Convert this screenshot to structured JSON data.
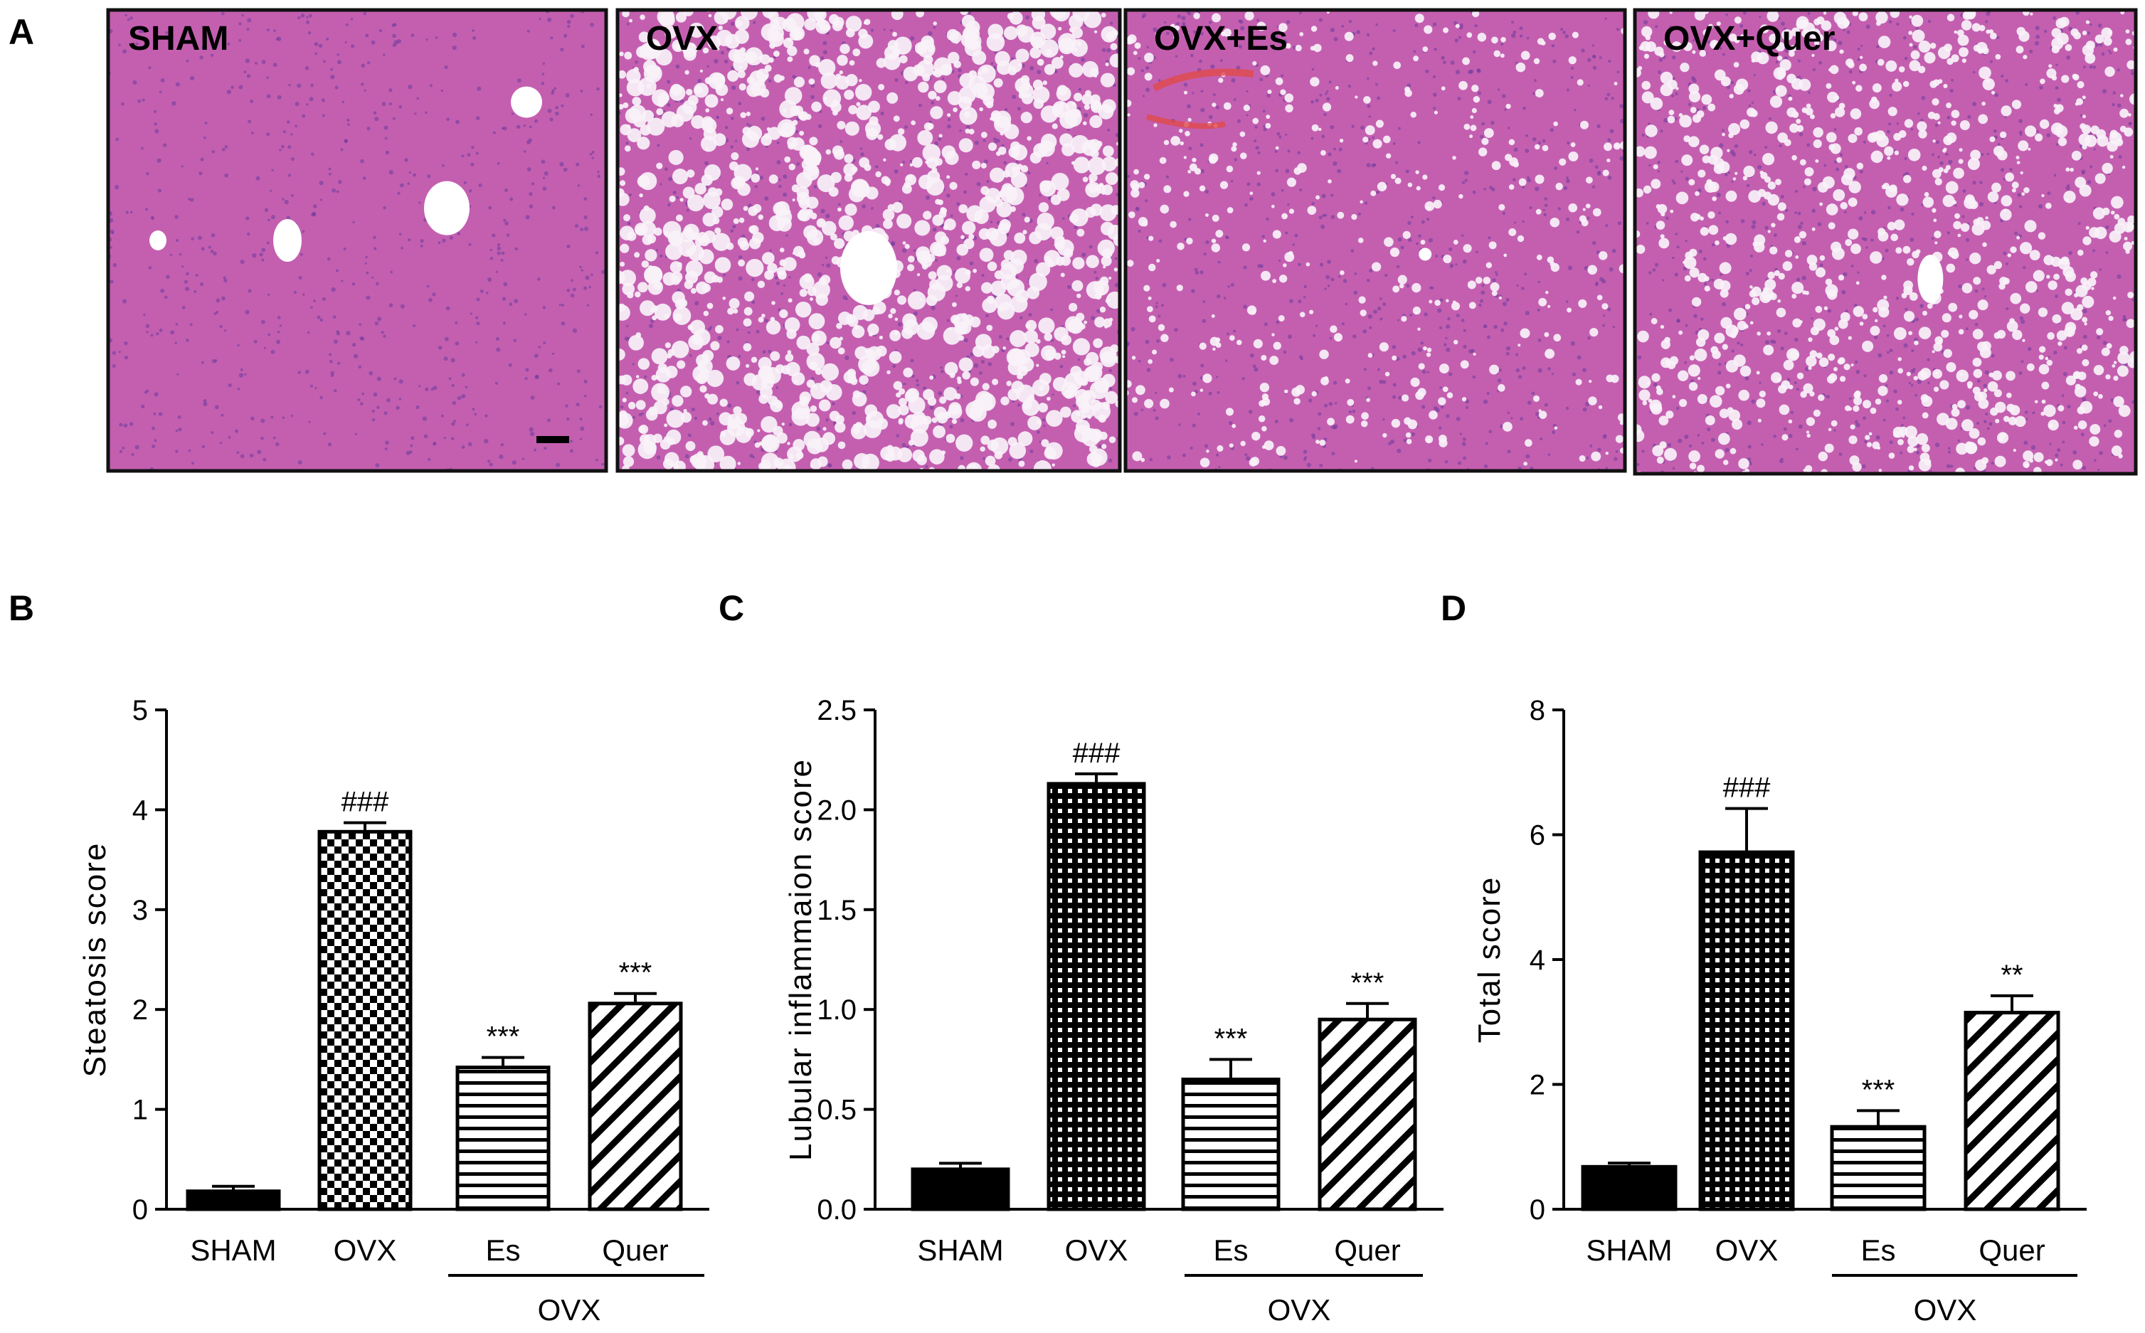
{
  "panel_a": {
    "letter": "A",
    "images": [
      {
        "label": "SHAM",
        "pattern": "normal-liver"
      },
      {
        "label": "OVX",
        "pattern": "severe-steatosis"
      },
      {
        "label": "OVX+Es",
        "pattern": "mild-steatosis"
      },
      {
        "label": "OVX+Quer",
        "pattern": "moderate-steatosis"
      }
    ],
    "tissue_color": "#c45fb0",
    "frame_color": "#111111"
  },
  "chart_data": [
    {
      "panel": "B",
      "type": "bar",
      "ylabel": "Steatosis score",
      "ylim": [
        0,
        5
      ],
      "yticks": [
        "0",
        "1",
        "2",
        "3",
        "4",
        "5"
      ],
      "categories": [
        "SHAM",
        "OVX",
        "Es",
        "Quer"
      ],
      "group_label": "OVX",
      "values": [
        0.18,
        3.78,
        1.42,
        2.06
      ],
      "errors": [
        0.05,
        0.09,
        0.1,
        0.1
      ],
      "significance": [
        "",
        "###",
        "***",
        "***"
      ],
      "fills": [
        "solid",
        "checker",
        "horizontal",
        "diagonal"
      ]
    },
    {
      "panel": "C",
      "type": "bar",
      "ylabel": "Lubular inflammaion score",
      "ylim": [
        0,
        2.5
      ],
      "yticks": [
        "0.0",
        "0.5",
        "1.0",
        "1.5",
        "2.0",
        "2.5"
      ],
      "categories": [
        "SHAM",
        "OVX",
        "Es",
        "Quer"
      ],
      "group_label": "OVX",
      "values": [
        0.2,
        2.13,
        0.65,
        0.95
      ],
      "errors": [
        0.03,
        0.05,
        0.1,
        0.08
      ],
      "significance": [
        "",
        "###",
        "***",
        "***"
      ],
      "fills": [
        "solid",
        "dots",
        "horizontal",
        "diagonal"
      ]
    },
    {
      "panel": "D",
      "type": "bar",
      "ylabel": "Total score",
      "ylim": [
        0,
        8
      ],
      "yticks": [
        "0",
        "2",
        "4",
        "6",
        "8"
      ],
      "categories": [
        "SHAM",
        "OVX",
        "Es",
        "Quer"
      ],
      "group_label": "OVX",
      "values": [
        0.68,
        5.72,
        1.32,
        3.15
      ],
      "errors": [
        0.06,
        0.7,
        0.26,
        0.27
      ],
      "significance": [
        "",
        "###",
        "***",
        "**"
      ],
      "fills": [
        "solid",
        "dots",
        "horizontal",
        "diagonal"
      ]
    }
  ]
}
